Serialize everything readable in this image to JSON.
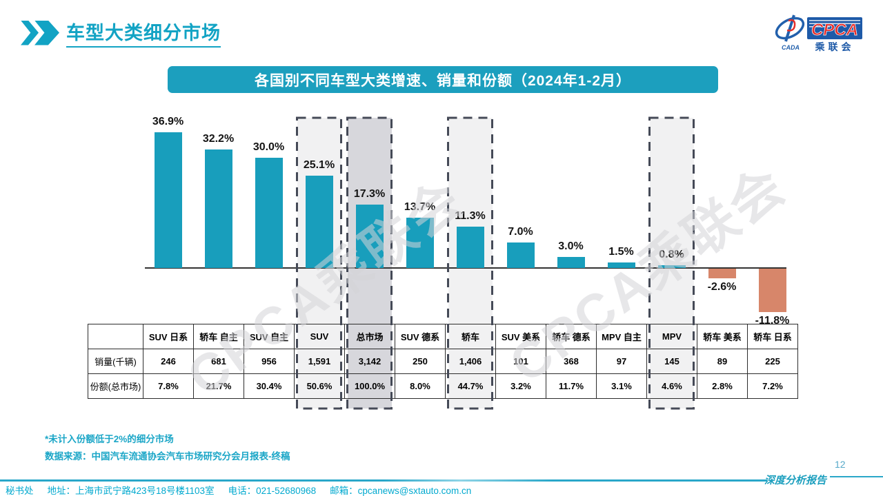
{
  "header": {
    "title": "车型大类细分市场"
  },
  "logo": {
    "acronym": "CPCA",
    "cn_name": "乘联会",
    "sub_label": "CADA"
  },
  "banner": {
    "title": "各国别不同车型大类增速、销量和份额（2024年1-2月）"
  },
  "watermark": {
    "text": "CPCA乘联会"
  },
  "chart_data": {
    "type": "bar",
    "title": "各国别不同车型大类增速、销量和份额（2024年1-2月）",
    "categories": [
      "SUV 日系",
      "轿车 自主",
      "SUV 自主",
      "SUV",
      "总市场",
      "SUV 德系",
      "轿车",
      "SUV 美系",
      "轿车 德系",
      "MPV 自主",
      "MPV",
      "轿车 美系",
      "轿车 日系"
    ],
    "values": [
      36.9,
      32.2,
      30.0,
      25.1,
      17.3,
      13.7,
      11.3,
      7.0,
      3.0,
      1.5,
      0.8,
      -2.6,
      -11.8
    ],
    "value_labels": [
      "36.9%",
      "32.2%",
      "30.0%",
      "25.1%",
      "17.3%",
      "13.7%",
      "11.3%",
      "7.0%",
      "3.0%",
      "1.5%",
      "0.8%",
      "-2.6%",
      "-11.8%"
    ],
    "highlight_columns": [
      3,
      4,
      6,
      10
    ],
    "dark_highlight_column": 4,
    "bar_color_positive": "#189ebc",
    "bar_color_negative": "#d7866a",
    "highlight_bg_light": "#f1f1f2",
    "highlight_bg_dark": "#d7d7dc",
    "dash_color": "#454a57",
    "ylim": [
      -13,
      40
    ],
    "grid": false,
    "legend": "none",
    "table": {
      "row_labels": [
        "销量(千辆)",
        "份额(总市场)"
      ],
      "rows": [
        [
          "246",
          "681",
          "956",
          "1,591",
          "3,142",
          "250",
          "1,406",
          "101",
          "368",
          "97",
          "145",
          "89",
          "225"
        ],
        [
          "7.8%",
          "21.7%",
          "30.4%",
          "50.6%",
          "100.0%",
          "8.0%",
          "44.7%",
          "3.2%",
          "11.7%",
          "3.1%",
          "4.6%",
          "2.8%",
          "7.2%"
        ]
      ]
    }
  },
  "footnotes": {
    "note": "*未计入份额低于2%的细分市场",
    "source": "数据来源：中国汽车流通协会汽车市场研究分会月报表-终稿"
  },
  "footer": {
    "secretariat": "秘书处",
    "address": "地址：上海市武宁路423号18号楼1103室",
    "phone": "电话：021-52680968",
    "email": "邮箱：cpcanews@sxtauto.com.cn",
    "report_label": "深度分析报告",
    "page_number": "12"
  }
}
